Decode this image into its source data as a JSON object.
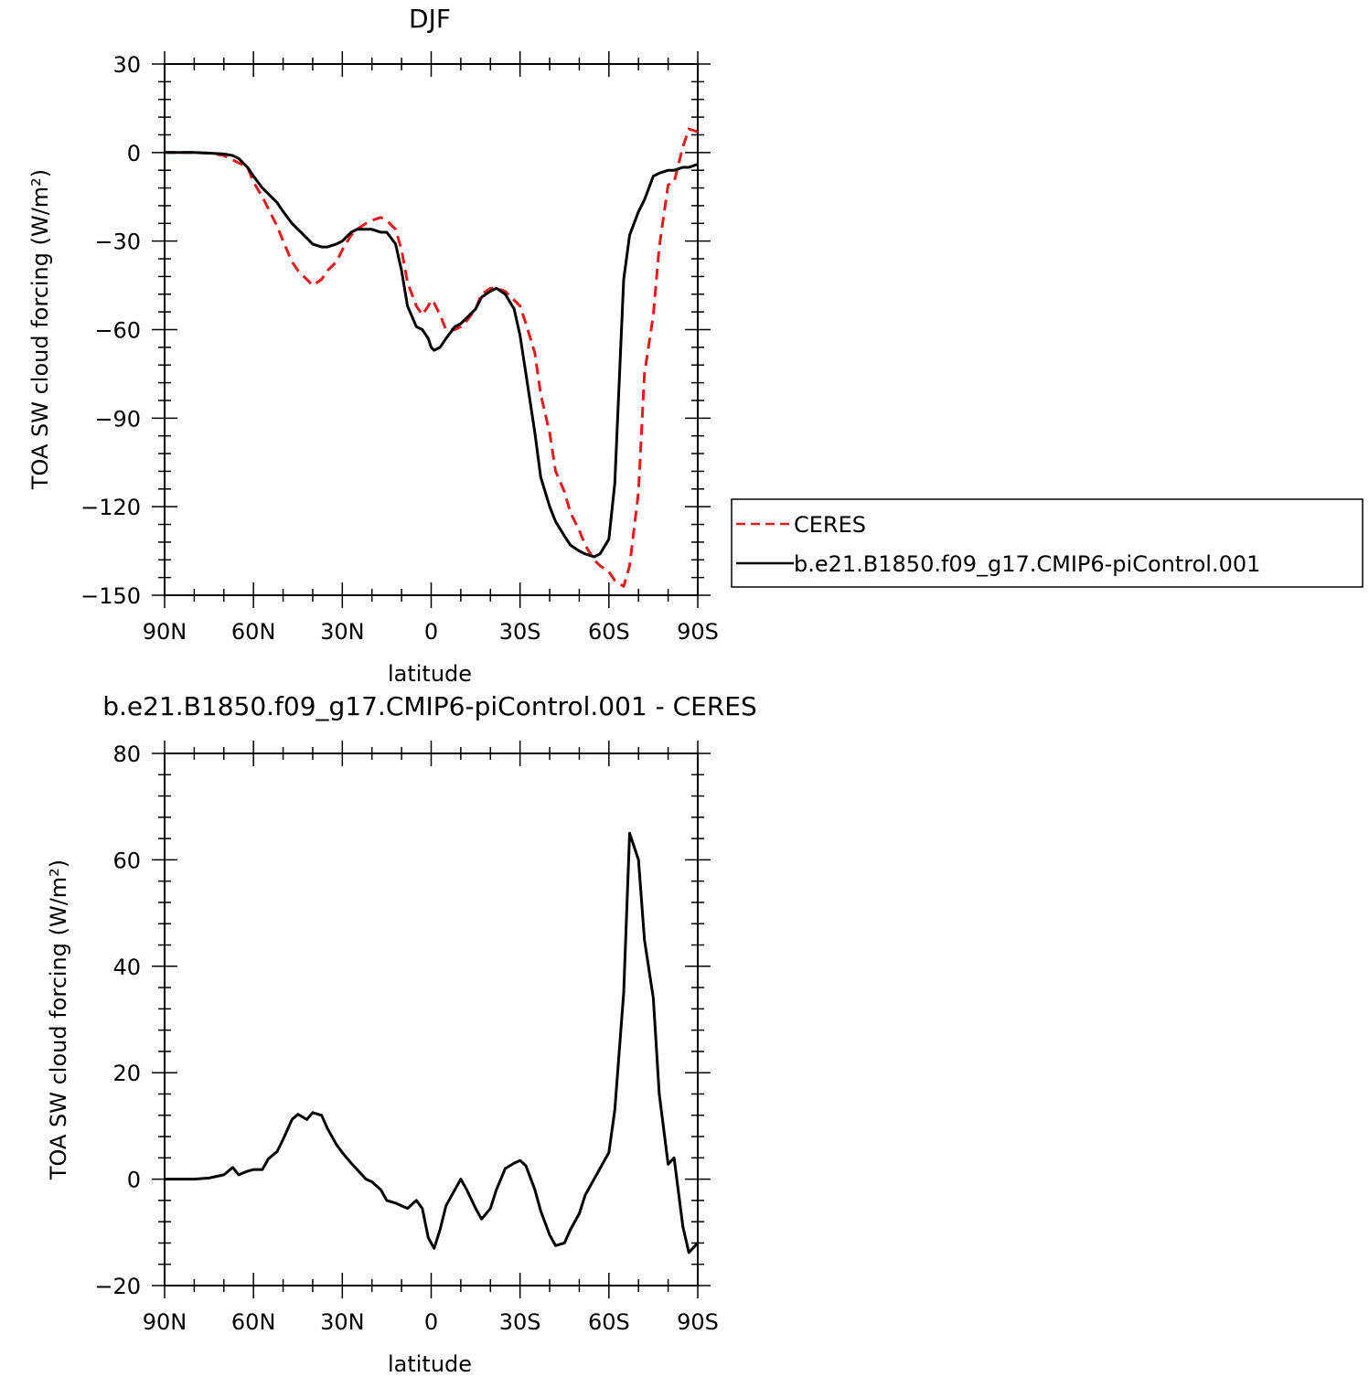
{
  "chart_data": [
    {
      "type": "line",
      "title": "DJF",
      "xlabel": "latitude",
      "ylabel": "TOA SW cloud forcing (W/m²)",
      "ylim": [
        -150,
        30
      ],
      "yticks": [
        30,
        0,
        -30,
        -60,
        -90,
        -120,
        -150
      ],
      "xticks": [
        -90,
        -60,
        -30,
        0,
        30,
        60,
        90
      ],
      "xtick_labels": [
        "90N",
        "60N",
        "30N",
        "0",
        "30S",
        "60S",
        "90S"
      ],
      "legend": {
        "position": "right",
        "entries": [
          "CERES",
          "b.e21.B1850.f09_g17.CMIP6-piControl.001"
        ]
      },
      "series": [
        {
          "name": "CERES",
          "color": "#e41a1c",
          "dash": true,
          "x": [
            -90,
            -85,
            -80,
            -75,
            -70,
            -67,
            -65,
            -62,
            -60,
            -57,
            -55,
            -52,
            -50,
            -47,
            -45,
            -42,
            -40,
            -37,
            -35,
            -32,
            -30,
            -27,
            -25,
            -22,
            -20,
            -17,
            -15,
            -12,
            -10,
            -8,
            -5,
            -3,
            -1,
            0,
            1,
            3,
            5,
            8,
            10,
            12,
            15,
            17,
            20,
            22,
            25,
            28,
            30,
            32,
            35,
            37,
            40,
            42,
            45,
            47,
            50,
            52,
            55,
            57,
            60,
            62,
            65,
            67,
            70,
            72,
            75,
            77,
            80,
            82,
            85,
            87,
            90
          ],
          "y": [
            0,
            0,
            0,
            -0.2,
            -1,
            -2.5,
            -3.5,
            -5,
            -10,
            -15,
            -19,
            -25,
            -30,
            -37,
            -40,
            -43,
            -45,
            -43,
            -40,
            -37,
            -33,
            -28,
            -26,
            -24,
            -23,
            -22,
            -23,
            -26,
            -33,
            -44,
            -52,
            -55,
            -52,
            -50,
            -51,
            -55,
            -60,
            -60,
            -59,
            -57,
            -53,
            -48,
            -46,
            -46,
            -47,
            -50,
            -52,
            -58,
            -68,
            -82,
            -95,
            -108,
            -115,
            -122,
            -128,
            -133,
            -138,
            -140,
            -142,
            -145,
            -147,
            -140,
            -115,
            -75,
            -55,
            -32,
            -11,
            -10,
            2,
            8,
            7
          ]
        },
        {
          "name": "b.e21.B1850.f09_g17.CMIP6-piControl.001",
          "color": "#000000",
          "dash": false,
          "x": [
            -90,
            -85,
            -80,
            -75,
            -70,
            -67,
            -65,
            -62,
            -60,
            -57,
            -55,
            -52,
            -50,
            -47,
            -45,
            -42,
            -40,
            -37,
            -35,
            -32,
            -30,
            -27,
            -25,
            -22,
            -20,
            -17,
            -15,
            -12,
            -10,
            -8,
            -5,
            -3,
            -1,
            0,
            1,
            3,
            5,
            8,
            10,
            12,
            15,
            17,
            20,
            22,
            25,
            28,
            30,
            32,
            35,
            37,
            40,
            42,
            45,
            47,
            50,
            52,
            55,
            57,
            60,
            62,
            65,
            67,
            70,
            72,
            75,
            77,
            80,
            82,
            85,
            87,
            90
          ],
          "y": [
            0,
            0,
            0,
            -0.2,
            -0.5,
            -1,
            -2,
            -5,
            -8,
            -12,
            -14,
            -17,
            -20,
            -24,
            -26,
            -29,
            -31,
            -32,
            -32,
            -31,
            -30,
            -27,
            -26,
            -26,
            -26,
            -27,
            -27,
            -31,
            -40,
            -52,
            -59,
            -60,
            -63,
            -66,
            -67,
            -66,
            -63,
            -59,
            -58,
            -56,
            -53,
            -49,
            -47,
            -46,
            -48,
            -53,
            -62,
            -75,
            -95,
            -110,
            -120,
            -125,
            -130,
            -133,
            -135,
            -136,
            -137,
            -136,
            -131,
            -112,
            -43,
            -28,
            -20,
            -16,
            -8,
            -7,
            -6,
            -6,
            -5,
            -5,
            -4
          ]
        }
      ]
    },
    {
      "type": "line",
      "title": "b.e21.B1850.f09_g17.CMIP6-piControl.001  -  CERES",
      "xlabel": "latitude",
      "ylabel": "TOA SW cloud forcing (W/m²)",
      "ylim": [
        -20,
        80
      ],
      "yticks": [
        80,
        60,
        40,
        20,
        0,
        -20
      ],
      "xticks": [
        -90,
        -60,
        -30,
        0,
        30,
        60,
        90
      ],
      "xtick_labels": [
        "90N",
        "60N",
        "30N",
        "0",
        "30S",
        "60S",
        "90S"
      ],
      "series": [
        {
          "color": "#000000",
          "dash": false,
          "x": [
            -90,
            -85,
            -80,
            -75,
            -70,
            -67,
            -65,
            -62,
            -60,
            -57,
            -55,
            -52,
            -50,
            -47,
            -45,
            -42,
            -40,
            -37,
            -35,
            -32,
            -30,
            -27,
            -25,
            -22,
            -20,
            -17,
            -15,
            -12,
            -10,
            -8,
            -5,
            -3,
            -1,
            0,
            1,
            3,
            5,
            8,
            10,
            12,
            15,
            17,
            20,
            22,
            25,
            28,
            30,
            32,
            35,
            37,
            40,
            42,
            45,
            47,
            50,
            52,
            55,
            57,
            60,
            62,
            65,
            67,
            70,
            72,
            75,
            77,
            80,
            82,
            85,
            87,
            90
          ],
          "y": [
            0,
            0,
            0,
            0.2,
            0.8,
            2.2,
            0.8,
            1.5,
            1.8,
            1.8,
            3.8,
            5.2,
            7.5,
            11.2,
            12.2,
            11.2,
            12.5,
            12,
            9.5,
            6.5,
            5,
            3,
            1.8,
            0,
            -0.5,
            -2,
            -4,
            -4.5,
            -5,
            -5.5,
            -4,
            -5.5,
            -11,
            -12,
            -13,
            -9.5,
            -5,
            -2,
            0,
            -2,
            -5.5,
            -7.5,
            -5.5,
            -2,
            2,
            3,
            3.5,
            2.5,
            -2,
            -6,
            -10.5,
            -12.5,
            -12,
            -9.5,
            -6.5,
            -3,
            0,
            2,
            5,
            13,
            35,
            65,
            60,
            45,
            34,
            16,
            2.8,
            4,
            -9,
            -13.8,
            -12
          ]
        }
      ]
    }
  ]
}
